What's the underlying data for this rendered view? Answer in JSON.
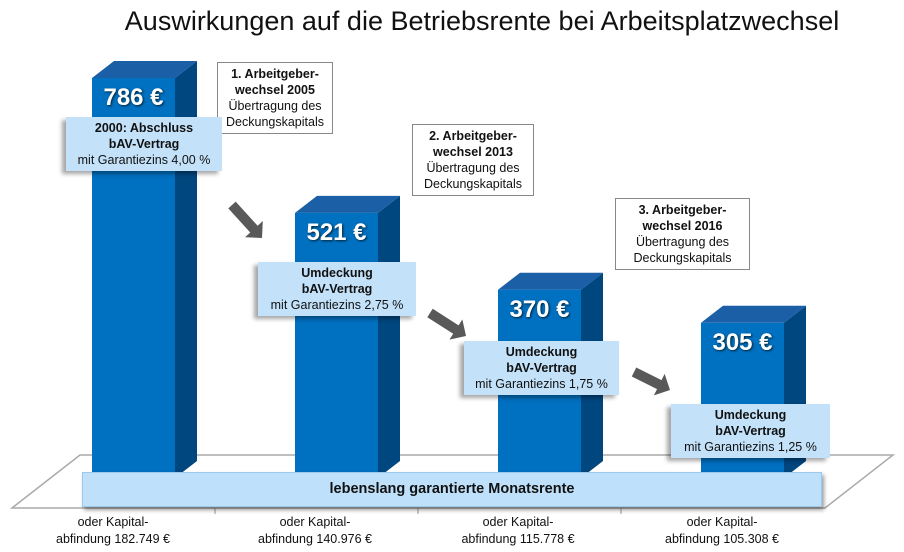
{
  "chart_data": {
    "type": "bar",
    "title": "Auswirkungen auf die Betriebsrente bei Arbeitsplatzwechsel",
    "categories": [
      "oder Kapital- abfindung 182.749 €",
      "oder Kapital- abfindung 140.976 €",
      "oder Kapital- abfindung 115.778 €",
      "oder Kapital- abfindung 105.308 €"
    ],
    "values": [
      786,
      521,
      370,
      305
    ],
    "value_labels": [
      "786 €",
      "521 €",
      "370 €",
      "305 €"
    ],
    "footer_lines": [
      [
        "oder Kapital-",
        "abfindung 182.749 €"
      ],
      [
        "oder Kapital-",
        "abfindung 140.976 €"
      ],
      [
        "oder Kapital-",
        "abfindung 115.778 €"
      ],
      [
        "oder Kapital-",
        "abfindung 105.308 €"
      ]
    ],
    "bar_labels": [
      {
        "bold1": "2000: Abschluss",
        "bold2": "bAV-Vertrag",
        "text": "mit Garantiezins 4,00 %"
      },
      {
        "bold1": "Umdeckung",
        "bold2": "bAV-Vertrag",
        "text": "mit Garantiezins 2,75 %"
      },
      {
        "bold1": "Umdeckung",
        "bold2": "bAV-Vertrag",
        "text": "mit Garantiezins 1,75 %"
      },
      {
        "bold1": "Umdeckung",
        "bold2": "bAV-Vertrag",
        "text": "mit Garantiezins 1,25 %"
      }
    ],
    "events": [
      {
        "bold1": "1. Arbeitgeber-",
        "bold2": "wechsel 2005",
        "line1": "Übertragung des",
        "line2": "Deckungskapitals"
      },
      {
        "bold1": "2. Arbeitgeber-",
        "bold2": "wechsel 2013",
        "line1": "Übertragung des",
        "line2": "Deckungskapitals"
      },
      {
        "bold1": "3. Arbeitgeber-",
        "bold2": "wechsel 2016",
        "line1": "Übertragung des",
        "line2": "Deckungskapitals"
      }
    ],
    "banner": "lebenslang  garantierte Monatsrente",
    "colors": {
      "bar_front": "#0070c0",
      "bar_side": "#00467f",
      "bar_top": "#1b5fa6",
      "label_bg": "#c3e2fa",
      "arrow": "#595959"
    }
  }
}
